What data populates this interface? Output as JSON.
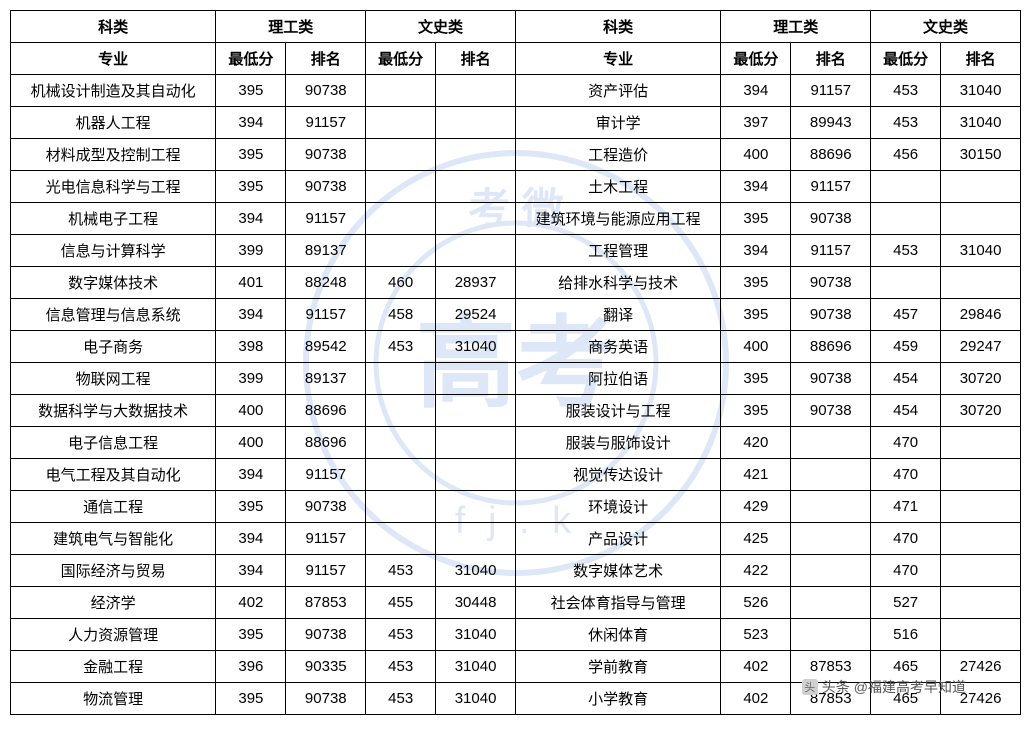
{
  "headers": {
    "category": "科类",
    "science": "理工类",
    "liberal": "文史类",
    "major": "专业",
    "min_score": "最低分",
    "rank": "排名"
  },
  "watermark": {
    "top_text": "考 微",
    "center_text": "高考",
    "bottom_text": "f j . k",
    "stroke_color": "#4a7fd6"
  },
  "attribution": {
    "prefix": "头条",
    "handle": "@福建高考早知道"
  },
  "colors": {
    "border": "#000000",
    "text": "#000000",
    "background": "#ffffff",
    "watermark": "#4a7fd6",
    "attribution": "#555555"
  },
  "left_rows": [
    {
      "major": "机械设计制造及其自动化",
      "s_min": "395",
      "s_rank": "90738",
      "l_min": "",
      "l_rank": ""
    },
    {
      "major": "机器人工程",
      "s_min": "394",
      "s_rank": "91157",
      "l_min": "",
      "l_rank": ""
    },
    {
      "major": "材料成型及控制工程",
      "s_min": "395",
      "s_rank": "90738",
      "l_min": "",
      "l_rank": ""
    },
    {
      "major": "光电信息科学与工程",
      "s_min": "395",
      "s_rank": "90738",
      "l_min": "",
      "l_rank": ""
    },
    {
      "major": "机械电子工程",
      "s_min": "394",
      "s_rank": "91157",
      "l_min": "",
      "l_rank": ""
    },
    {
      "major": "信息与计算科学",
      "s_min": "399",
      "s_rank": "89137",
      "l_min": "",
      "l_rank": ""
    },
    {
      "major": "数字媒体技术",
      "s_min": "401",
      "s_rank": "88248",
      "l_min": "460",
      "l_rank": "28937"
    },
    {
      "major": "信息管理与信息系统",
      "s_min": "394",
      "s_rank": "91157",
      "l_min": "458",
      "l_rank": "29524"
    },
    {
      "major": "电子商务",
      "s_min": "398",
      "s_rank": "89542",
      "l_min": "453",
      "l_rank": "31040"
    },
    {
      "major": "物联网工程",
      "s_min": "399",
      "s_rank": "89137",
      "l_min": "",
      "l_rank": ""
    },
    {
      "major": "数据科学与大数据技术",
      "s_min": "400",
      "s_rank": "88696",
      "l_min": "",
      "l_rank": ""
    },
    {
      "major": "电子信息工程",
      "s_min": "400",
      "s_rank": "88696",
      "l_min": "",
      "l_rank": ""
    },
    {
      "major": "电气工程及其自动化",
      "s_min": "394",
      "s_rank": "91157",
      "l_min": "",
      "l_rank": ""
    },
    {
      "major": "通信工程",
      "s_min": "395",
      "s_rank": "90738",
      "l_min": "",
      "l_rank": ""
    },
    {
      "major": "建筑电气与智能化",
      "s_min": "394",
      "s_rank": "91157",
      "l_min": "",
      "l_rank": ""
    },
    {
      "major": "国际经济与贸易",
      "s_min": "394",
      "s_rank": "91157",
      "l_min": "453",
      "l_rank": "31040"
    },
    {
      "major": "经济学",
      "s_min": "402",
      "s_rank": "87853",
      "l_min": "455",
      "l_rank": "30448"
    },
    {
      "major": "人力资源管理",
      "s_min": "395",
      "s_rank": "90738",
      "l_min": "453",
      "l_rank": "31040"
    },
    {
      "major": "金融工程",
      "s_min": "396",
      "s_rank": "90335",
      "l_min": "453",
      "l_rank": "31040"
    },
    {
      "major": "物流管理",
      "s_min": "395",
      "s_rank": "90738",
      "l_min": "453",
      "l_rank": "31040"
    }
  ],
  "right_rows": [
    {
      "major": "资产评估",
      "s_min": "394",
      "s_rank": "91157",
      "l_min": "453",
      "l_rank": "31040"
    },
    {
      "major": "审计学",
      "s_min": "397",
      "s_rank": "89943",
      "l_min": "453",
      "l_rank": "31040"
    },
    {
      "major": "工程造价",
      "s_min": "400",
      "s_rank": "88696",
      "l_min": "456",
      "l_rank": "30150"
    },
    {
      "major": "土木工程",
      "s_min": "394",
      "s_rank": "91157",
      "l_min": "",
      "l_rank": ""
    },
    {
      "major": "建筑环境与能源应用工程",
      "s_min": "395",
      "s_rank": "90738",
      "l_min": "",
      "l_rank": ""
    },
    {
      "major": "工程管理",
      "s_min": "394",
      "s_rank": "91157",
      "l_min": "453",
      "l_rank": "31040"
    },
    {
      "major": "给排水科学与技术",
      "s_min": "395",
      "s_rank": "90738",
      "l_min": "",
      "l_rank": ""
    },
    {
      "major": "翻译",
      "s_min": "395",
      "s_rank": "90738",
      "l_min": "457",
      "l_rank": "29846"
    },
    {
      "major": "商务英语",
      "s_min": "400",
      "s_rank": "88696",
      "l_min": "459",
      "l_rank": "29247"
    },
    {
      "major": "阿拉伯语",
      "s_min": "395",
      "s_rank": "90738",
      "l_min": "454",
      "l_rank": "30720"
    },
    {
      "major": "服装设计与工程",
      "s_min": "395",
      "s_rank": "90738",
      "l_min": "454",
      "l_rank": "30720"
    },
    {
      "major": "服装与服饰设计",
      "s_min": "420",
      "s_rank": "",
      "l_min": "470",
      "l_rank": ""
    },
    {
      "major": "视觉传达设计",
      "s_min": "421",
      "s_rank": "",
      "l_min": "470",
      "l_rank": ""
    },
    {
      "major": "环境设计",
      "s_min": "429",
      "s_rank": "",
      "l_min": "471",
      "l_rank": ""
    },
    {
      "major": "产品设计",
      "s_min": "425",
      "s_rank": "",
      "l_min": "470",
      "l_rank": ""
    },
    {
      "major": "数字媒体艺术",
      "s_min": "422",
      "s_rank": "",
      "l_min": "470",
      "l_rank": ""
    },
    {
      "major": "社会体育指导与管理",
      "s_min": "526",
      "s_rank": "",
      "l_min": "527",
      "l_rank": ""
    },
    {
      "major": "休闲体育",
      "s_min": "523",
      "s_rank": "",
      "l_min": "516",
      "l_rank": ""
    },
    {
      "major": "学前教育",
      "s_min": "402",
      "s_rank": "87853",
      "l_min": "465",
      "l_rank": "27426"
    },
    {
      "major": "小学教育",
      "s_min": "402",
      "s_rank": "87853",
      "l_min": "465",
      "l_rank": "27426"
    }
  ]
}
